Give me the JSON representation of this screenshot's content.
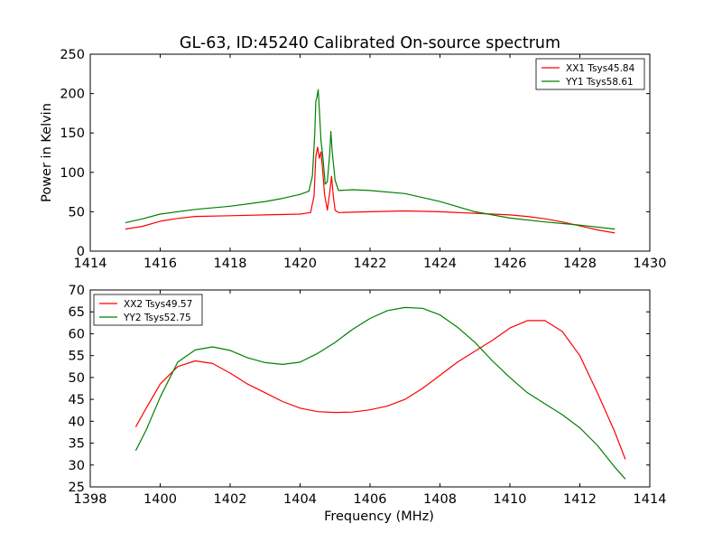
{
  "title": "GL-63, ID:45240 Calibrated On-source spectrum",
  "chart_data": [
    {
      "type": "line",
      "name": "top-panel",
      "ylabel": "Power in Kelvin",
      "xlabel": "",
      "xlim": [
        1414,
        1430
      ],
      "ylim": [
        0,
        250
      ],
      "xticks": [
        1414,
        1416,
        1418,
        1420,
        1422,
        1424,
        1426,
        1428,
        1430
      ],
      "yticks": [
        0,
        50,
        100,
        150,
        200,
        250
      ],
      "legend_position": "top-right",
      "series": [
        {
          "name": "XX1 Tsys45.84",
          "color": "#ff0000",
          "points": [
            [
              1415.0,
              28
            ],
            [
              1415.5,
              31.5
            ],
            [
              1416.0,
              38
            ],
            [
              1416.5,
              41.5
            ],
            [
              1417.0,
              44
            ],
            [
              1418.0,
              45
            ],
            [
              1419.0,
              46
            ],
            [
              1420.0,
              47
            ],
            [
              1420.3,
              49
            ],
            [
              1420.4,
              70
            ],
            [
              1420.45,
              120
            ],
            [
              1420.5,
              132
            ],
            [
              1420.55,
              118
            ],
            [
              1420.6,
              126
            ],
            [
              1420.65,
              100
            ],
            [
              1420.7,
              72
            ],
            [
              1420.78,
              52
            ],
            [
              1420.85,
              75
            ],
            [
              1420.9,
              95
            ],
            [
              1420.95,
              70
            ],
            [
              1421.0,
              52
            ],
            [
              1421.1,
              49
            ],
            [
              1422.0,
              50
            ],
            [
              1423.0,
              51
            ],
            [
              1424.0,
              50
            ],
            [
              1425.0,
              48
            ],
            [
              1426.0,
              46
            ],
            [
              1426.5,
              44
            ],
            [
              1427.0,
              41
            ],
            [
              1427.5,
              37
            ],
            [
              1428.0,
              32
            ],
            [
              1428.5,
              27
            ],
            [
              1429.0,
              23
            ]
          ]
        },
        {
          "name": "YY1 Tsys58.61",
          "color": "#008000",
          "points": [
            [
              1415.0,
              36
            ],
            [
              1415.5,
              41
            ],
            [
              1416.0,
              47
            ],
            [
              1417.0,
              53
            ],
            [
              1418.0,
              57
            ],
            [
              1419.0,
              63
            ],
            [
              1419.5,
              67
            ],
            [
              1420.0,
              72
            ],
            [
              1420.25,
              76
            ],
            [
              1420.35,
              95
            ],
            [
              1420.42,
              150
            ],
            [
              1420.45,
              190
            ],
            [
              1420.48,
              195
            ],
            [
              1420.52,
              205
            ],
            [
              1420.55,
              180
            ],
            [
              1420.6,
              140
            ],
            [
              1420.65,
              120
            ],
            [
              1420.72,
              85
            ],
            [
              1420.78,
              88
            ],
            [
              1420.85,
              125
            ],
            [
              1420.88,
              152
            ],
            [
              1420.92,
              125
            ],
            [
              1421.0,
              90
            ],
            [
              1421.1,
              77
            ],
            [
              1421.5,
              78
            ],
            [
              1422.0,
              77
            ],
            [
              1423.0,
              73
            ],
            [
              1424.0,
              63
            ],
            [
              1425.0,
              50
            ],
            [
              1426.0,
              42
            ],
            [
              1427.0,
              37
            ],
            [
              1428.0,
              33
            ],
            [
              1429.0,
              28
            ]
          ]
        }
      ]
    },
    {
      "type": "line",
      "name": "bottom-panel",
      "xlabel": "Frequency (MHz)",
      "ylabel": "",
      "xlim": [
        1398,
        1414
      ],
      "ylim": [
        25,
        70
      ],
      "xticks": [
        1398,
        1400,
        1402,
        1404,
        1406,
        1408,
        1410,
        1412,
        1414
      ],
      "yticks": [
        25,
        30,
        35,
        40,
        45,
        50,
        55,
        60,
        65,
        70
      ],
      "legend_position": "top-left",
      "series": [
        {
          "name": "XX2 Tsys49.57",
          "color": "#ff0000",
          "points": [
            [
              1399.3,
              38.7
            ],
            [
              1399.6,
              43
            ],
            [
              1400.0,
              48.5
            ],
            [
              1400.5,
              52.5
            ],
            [
              1401.0,
              53.8
            ],
            [
              1401.5,
              53.2
            ],
            [
              1402.0,
              51
            ],
            [
              1402.5,
              48.5
            ],
            [
              1403.0,
              46.5
            ],
            [
              1403.5,
              44.5
            ],
            [
              1404.0,
              43
            ],
            [
              1404.5,
              42.2
            ],
            [
              1405.0,
              42
            ],
            [
              1405.5,
              42.1
            ],
            [
              1406.0,
              42.6
            ],
            [
              1406.5,
              43.5
            ],
            [
              1407.0,
              45
            ],
            [
              1407.5,
              47.5
            ],
            [
              1408.0,
              50.5
            ],
            [
              1408.5,
              53.5
            ],
            [
              1409.0,
              56
            ],
            [
              1409.5,
              58.5
            ],
            [
              1410.0,
              61.3
            ],
            [
              1410.5,
              63
            ],
            [
              1411.0,
              63
            ],
            [
              1411.5,
              60.5
            ],
            [
              1412.0,
              55
            ],
            [
              1412.5,
              46.5
            ],
            [
              1413.0,
              37.5
            ],
            [
              1413.3,
              31.3
            ]
          ]
        },
        {
          "name": "YY2 Tsys52.75",
          "color": "#008000",
          "points": [
            [
              1399.3,
              33.3
            ],
            [
              1399.6,
              38
            ],
            [
              1400.0,
              45.5
            ],
            [
              1400.5,
              53.5
            ],
            [
              1401.0,
              56.3
            ],
            [
              1401.5,
              57
            ],
            [
              1402.0,
              56.2
            ],
            [
              1402.5,
              54.5
            ],
            [
              1403.0,
              53.4
            ],
            [
              1403.5,
              53
            ],
            [
              1404.0,
              53.5
            ],
            [
              1404.5,
              55.5
            ],
            [
              1405.0,
              58
            ],
            [
              1405.5,
              61
            ],
            [
              1406.0,
              63.5
            ],
            [
              1406.5,
              65.3
            ],
            [
              1407.0,
              66
            ],
            [
              1407.5,
              65.8
            ],
            [
              1408.0,
              64.3
            ],
            [
              1408.5,
              61.5
            ],
            [
              1409.0,
              58
            ],
            [
              1409.5,
              53.8
            ],
            [
              1410.0,
              50
            ],
            [
              1410.5,
              46.5
            ],
            [
              1411.0,
              44
            ],
            [
              1411.5,
              41.5
            ],
            [
              1412.0,
              38.5
            ],
            [
              1412.5,
              34.5
            ],
            [
              1413.0,
              29.5
            ],
            [
              1413.3,
              26.8
            ]
          ]
        }
      ]
    }
  ]
}
